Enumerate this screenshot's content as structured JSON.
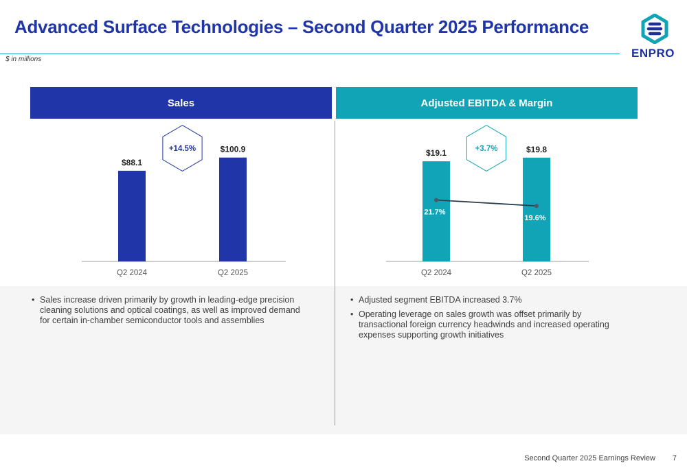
{
  "title": "Advanced Surface Technologies – Second Quarter 2025 Performance",
  "units_note": "$ in millions",
  "logo_text": "ENPRO",
  "colors": {
    "brand_blue": "#2035a8",
    "brand_teal": "#10a4b6"
  },
  "panels": {
    "sales": {
      "header": "Sales"
    },
    "ebitda": {
      "header": "Adjusted EBITDA & Margin"
    }
  },
  "chart_data": [
    {
      "type": "bar",
      "categories": [
        "Q2 2024",
        "Q2 2025"
      ],
      "values": [
        88.1,
        100.9
      ],
      "value_labels": [
        "$88.1",
        "$100.9"
      ],
      "change_label": "+14.5%",
      "color": "#2035a8",
      "ylim": [
        0,
        110
      ]
    },
    {
      "type": "bar",
      "categories": [
        "Q2 2024",
        "Q2 2025"
      ],
      "values": [
        19.1,
        19.8
      ],
      "value_labels": [
        "$19.1",
        "$19.8"
      ],
      "change_label": "+3.7%",
      "color": "#10a4b6",
      "ylim": [
        0,
        21.6
      ],
      "margin_line": {
        "values": [
          21.7,
          19.6
        ],
        "labels": [
          "21.7%",
          "19.6%"
        ],
        "ylim": [
          0,
          40
        ]
      }
    }
  ],
  "bullets": {
    "sales": [
      "Sales increase driven primarily by growth in leading-edge precision cleaning solutions and optical coatings, as well as improved demand for certain in-chamber semiconductor tools and assemblies"
    ],
    "ebitda": [
      "Adjusted segment EBITDA increased 3.7%",
      "Operating leverage on sales growth was offset primarily by transactional foreign currency headwinds and increased operating expenses supporting growth initiatives"
    ]
  },
  "footer": {
    "text": "Second Quarter 2025 Earnings Review",
    "page": "7"
  }
}
